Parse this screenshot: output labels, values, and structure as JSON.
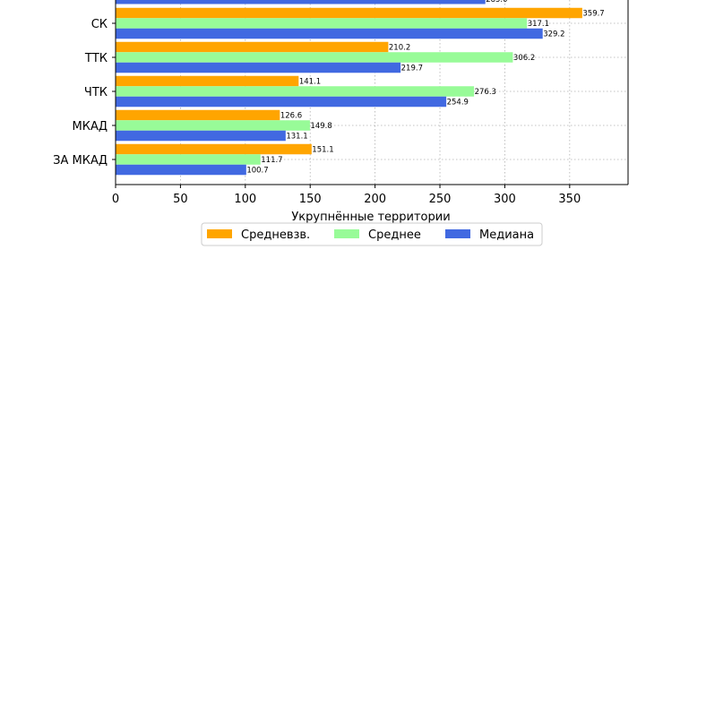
{
  "chart_data": {
    "type": "bar",
    "orientation": "horizontal",
    "categories": [
      "СК",
      "ТТК",
      "ЧТК",
      "МКАД",
      "ЗА МКАД"
    ],
    "series": [
      {
        "name": "Средневзв.",
        "color": "#ffa500",
        "values": [
          359.7,
          210.2,
          141.1,
          126.6,
          151.1
        ]
      },
      {
        "name": "Среднее",
        "color": "#98fb98",
        "values": [
          317.1,
          306.2,
          276.3,
          149.8,
          111.7
        ]
      },
      {
        "name": "Медиана",
        "color": "#4169e1",
        "values": [
          329.2,
          219.7,
          254.9,
          131.1,
          100.7
        ]
      }
    ],
    "partial_top_bar": {
      "series": "Медиана",
      "value": 285.0,
      "label": "285.0"
    },
    "xlabel": "Укрупнённые территории",
    "ylabel": "",
    "xlim": [
      0,
      395
    ],
    "xticks": [
      0,
      50,
      100,
      150,
      200,
      250,
      300,
      350
    ],
    "grid": true,
    "legend_position": "bottom"
  }
}
